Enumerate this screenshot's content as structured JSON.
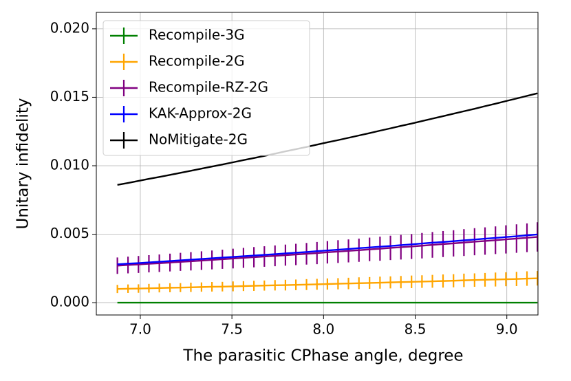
{
  "chart_data": {
    "type": "line",
    "x_label": "The parasitic CPhase angle, degree",
    "y_label": "Unitary infidelity",
    "x": [
      6.875,
      6.933,
      6.99,
      7.047,
      7.104,
      7.162,
      7.219,
      7.276,
      7.334,
      7.391,
      7.448,
      7.506,
      7.563,
      7.62,
      7.677,
      7.735,
      7.792,
      7.849,
      7.907,
      7.964,
      8.021,
      8.079,
      8.136,
      8.193,
      8.251,
      8.308,
      8.365,
      8.422,
      8.48,
      8.537,
      8.594,
      8.652,
      8.709,
      8.766,
      8.824,
      8.881,
      8.938,
      8.995,
      9.053,
      9.11,
      9.167
    ],
    "series": [
      {
        "name": "Recompile-3G",
        "color": "#008000",
        "values": [
          0,
          0,
          0,
          0,
          0,
          0,
          0,
          0,
          0,
          0,
          0,
          0,
          0,
          0,
          0,
          0,
          0,
          0,
          0,
          0,
          0,
          0,
          0,
          0,
          0,
          0,
          0,
          0,
          0,
          0,
          0,
          0,
          0,
          0,
          0,
          0,
          0,
          0,
          0,
          0,
          0
        ]
      },
      {
        "name": "Recompile-2G",
        "color": "#ffa500",
        "values": [
          0.001,
          0.00102,
          0.00103,
          0.00105,
          0.00107,
          0.00109,
          0.0011,
          0.00112,
          0.00114,
          0.00116,
          0.00117,
          0.00119,
          0.00121,
          0.00123,
          0.00125,
          0.00127,
          0.00128,
          0.0013,
          0.00132,
          0.00134,
          0.00136,
          0.00138,
          0.0014,
          0.00142,
          0.00144,
          0.00146,
          0.00148,
          0.0015,
          0.00152,
          0.00154,
          0.00156,
          0.00158,
          0.0016,
          0.00163,
          0.00165,
          0.00167,
          0.00169,
          0.00171,
          0.00173,
          0.00176,
          0.00178
        ],
        "errors": [
          0.0003,
          0.00031,
          0.00031,
          0.00032,
          0.00032,
          0.00033,
          0.00033,
          0.00034,
          0.00034,
          0.00035,
          0.00035,
          0.00036,
          0.00036,
          0.00037,
          0.00037,
          0.00038,
          0.00039,
          0.00039,
          0.0004,
          0.0004,
          0.00041,
          0.00041,
          0.00042,
          0.00043,
          0.00043,
          0.00044,
          0.00044,
          0.00045,
          0.00046,
          0.00046,
          0.00047,
          0.00048,
          0.00048,
          0.00049,
          0.00049,
          0.0005,
          0.00051,
          0.00051,
          0.00052,
          0.00053,
          0.00053
        ]
      },
      {
        "name": "Recompile-RZ-2G",
        "color": "#800080",
        "values": [
          0.0027,
          0.00275,
          0.00279,
          0.00284,
          0.00288,
          0.00293,
          0.00298,
          0.00302,
          0.00307,
          0.00312,
          0.00317,
          0.00322,
          0.00327,
          0.00332,
          0.00337,
          0.00342,
          0.00347,
          0.00352,
          0.00357,
          0.00362,
          0.00368,
          0.00373,
          0.00378,
          0.00383,
          0.00389,
          0.00394,
          0.004,
          0.00405,
          0.0041,
          0.00416,
          0.00422,
          0.00428,
          0.00433,
          0.00439,
          0.00445,
          0.0045,
          0.00456,
          0.00462,
          0.00468,
          0.00474,
          0.0048
        ],
        "errors": [
          0.0006,
          0.00061,
          0.00062,
          0.00063,
          0.00064,
          0.00065,
          0.00066,
          0.00067,
          0.00068,
          0.00069,
          0.0007,
          0.00072,
          0.00073,
          0.00074,
          0.00075,
          0.00076,
          0.00077,
          0.00078,
          0.00079,
          0.00081,
          0.00082,
          0.00083,
          0.00084,
          0.00085,
          0.00086,
          0.00088,
          0.00089,
          0.0009,
          0.00091,
          0.00093,
          0.00094,
          0.00095,
          0.00096,
          0.00098,
          0.00099,
          0.001,
          0.00101,
          0.00103,
          0.00104,
          0.00105,
          0.00107
        ]
      },
      {
        "name": "KAK-Approx-2G",
        "color": "#0000ff",
        "values": [
          0.0028,
          0.00285,
          0.00289,
          0.00294,
          0.00299,
          0.00304,
          0.00309,
          0.00314,
          0.00319,
          0.00324,
          0.00329,
          0.00334,
          0.00339,
          0.00344,
          0.00349,
          0.00354,
          0.0036,
          0.00365,
          0.0037,
          0.00376,
          0.00381,
          0.00387,
          0.00392,
          0.00398,
          0.00403,
          0.00409,
          0.00414,
          0.0042,
          0.00426,
          0.00432,
          0.00438,
          0.00443,
          0.00449,
          0.00455,
          0.00461,
          0.00467,
          0.00473,
          0.00479,
          0.00485,
          0.00492,
          0.00498
        ]
      },
      {
        "name": "NoMitigate-2G",
        "color": "#000000",
        "values": [
          0.0086,
          0.00874,
          0.00889,
          0.00904,
          0.00918,
          0.00933,
          0.00948,
          0.00963,
          0.00979,
          0.00994,
          0.01009,
          0.01025,
          0.01041,
          0.01056,
          0.01072,
          0.01088,
          0.01105,
          0.01121,
          0.01137,
          0.01154,
          0.01171,
          0.01187,
          0.01204,
          0.01221,
          0.01238,
          0.01256,
          0.01273,
          0.01291,
          0.01308,
          0.01326,
          0.01344,
          0.01362,
          0.0138,
          0.01398,
          0.01416,
          0.01435,
          0.01453,
          0.01472,
          0.01491,
          0.0151,
          0.01529
        ]
      }
    ],
    "xlim": [
      6.76,
      9.17
    ],
    "ylim": [
      -0.0009,
      0.0212
    ],
    "xticks": [
      {
        "value": 7,
        "label": "7.0"
      },
      {
        "value": 7.5,
        "label": "7.5"
      },
      {
        "value": 8,
        "label": "8.0"
      },
      {
        "value": 8.5,
        "label": "8.5"
      },
      {
        "value": 9,
        "label": "9.0"
      }
    ],
    "yticks": [
      {
        "value": 0,
        "label": "0.000"
      },
      {
        "value": 0.005,
        "label": "0.005"
      },
      {
        "value": 0.01,
        "label": "0.010"
      },
      {
        "value": 0.015,
        "label": "0.015"
      },
      {
        "value": 0.02,
        "label": "0.020"
      }
    ],
    "grid": true,
    "legend": "upper left"
  }
}
